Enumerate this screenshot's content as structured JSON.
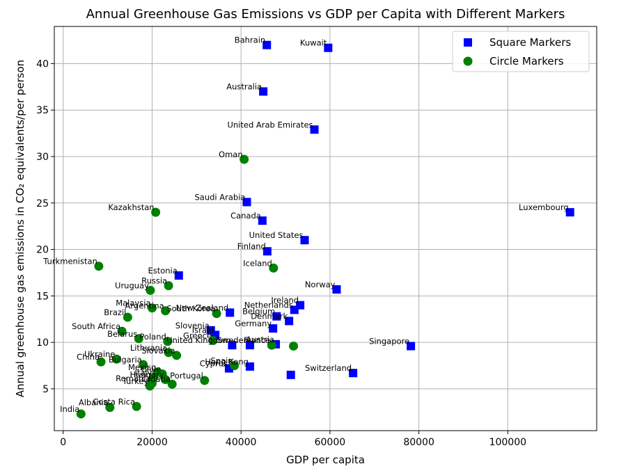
{
  "chart_data": {
    "type": "scatter",
    "title": "Annual Greenhouse Gas Emissions vs GDP per Capita with Different Markers",
    "xlabel": "GDP per capita",
    "ylabel": "Annual greenhouse gas emissions in CO₂ equivalents/per person",
    "xlim": [
      -2000,
      120000
    ],
    "ylim": [
      0.5,
      44
    ],
    "x_ticks": [
      0,
      20000,
      40000,
      60000,
      80000,
      100000
    ],
    "y_ticks": [
      5,
      10,
      15,
      20,
      25,
      30,
      35,
      40
    ],
    "grid": true,
    "legend_position": "top-right",
    "series": [
      {
        "name": "Square Markers",
        "marker": "square",
        "color": "#0000ff",
        "points": [
          {
            "label": "Bahrain",
            "x": 45800,
            "y": 42.0
          },
          {
            "label": "Kuwait",
            "x": 59600,
            "y": 41.7
          },
          {
            "label": "Australia",
            "x": 45000,
            "y": 37.0
          },
          {
            "label": "United Arab Emirates",
            "x": 56500,
            "y": 32.9
          },
          {
            "label": "Saudi Arabia",
            "x": 41300,
            "y": 25.1
          },
          {
            "label": "Luxembourg",
            "x": 114000,
            "y": 24.0
          },
          {
            "label": "Canada",
            "x": 44800,
            "y": 23.1
          },
          {
            "label": "United States",
            "x": 54300,
            "y": 21.0
          },
          {
            "label": "Finland",
            "x": 45900,
            "y": 19.8
          },
          {
            "label": "Estonia",
            "x": 26000,
            "y": 17.2
          },
          {
            "label": "Norway",
            "x": 61500,
            "y": 15.7
          },
          {
            "label": "Ireland",
            "x": 53300,
            "y": 14.0
          },
          {
            "label": "Netherlands",
            "x": 52000,
            "y": 13.5
          },
          {
            "label": "Belgium",
            "x": 48000,
            "y": 12.8
          },
          {
            "label": "New Zealand",
            "x": 37500,
            "y": 13.2
          },
          {
            "label": "Denmark",
            "x": 50800,
            "y": 12.3
          },
          {
            "label": "Germany",
            "x": 47200,
            "y": 11.5
          },
          {
            "label": "Slovenia",
            "x": 33200,
            "y": 11.3
          },
          {
            "label": "Israel",
            "x": 34200,
            "y": 10.8
          },
          {
            "label": "United Kingdom",
            "x": 38000,
            "y": 9.7
          },
          {
            "label": "Sweden",
            "x": 42000,
            "y": 9.7
          },
          {
            "label": "Austria",
            "x": 47800,
            "y": 9.8
          },
          {
            "label": "Singapore",
            "x": 78200,
            "y": 9.6
          },
          {
            "label": "Cyprus",
            "x": 37300,
            "y": 7.2
          },
          {
            "label": "Hong Kong",
            "x": 42000,
            "y": 7.4
          },
          {
            "label": "Switzerland",
            "x": 65200,
            "y": 6.7
          },
          {
            "label": "",
            "x": 51200,
            "y": 6.5
          }
        ]
      },
      {
        "name": "Circle Markers",
        "marker": "circle",
        "color": "#008000",
        "points": [
          {
            "label": "Oman",
            "x": 40700,
            "y": 29.7
          },
          {
            "label": "Kazakhstan",
            "x": 20800,
            "y": 24.0
          },
          {
            "label": "Turkmenistan",
            "x": 8000,
            "y": 18.2
          },
          {
            "label": "Iceland",
            "x": 47300,
            "y": 18.0
          },
          {
            "label": "Russia",
            "x": 23700,
            "y": 16.1
          },
          {
            "label": "Uruguay",
            "x": 19600,
            "y": 15.6
          },
          {
            "label": "Malaysia",
            "x": 20000,
            "y": 13.7
          },
          {
            "label": "Argentina",
            "x": 23000,
            "y": 13.4
          },
          {
            "label": "South Korea",
            "x": 34500,
            "y": 13.1
          },
          {
            "label": "Brazil",
            "x": 14500,
            "y": 12.7
          },
          {
            "label": "South Africa",
            "x": 13200,
            "y": 11.2
          },
          {
            "label": "Belarus",
            "x": 17000,
            "y": 10.4
          },
          {
            "label": "Poland",
            "x": 23500,
            "y": 10.1
          },
          {
            "label": "Greece",
            "x": 33700,
            "y": 10.2
          },
          {
            "label": "France",
            "x": 46900,
            "y": 9.7
          },
          {
            "label": "",
            "x": 51800,
            "y": 9.6
          },
          {
            "label": "Lithuania",
            "x": 23700,
            "y": 8.9
          },
          {
            "label": "Slovakia",
            "x": 25500,
            "y": 8.6
          },
          {
            "label": "Ukraine",
            "x": 12000,
            "y": 8.2
          },
          {
            "label": "China",
            "x": 8500,
            "y": 7.9
          },
          {
            "label": "Bulgaria",
            "x": 18000,
            "y": 7.6
          },
          {
            "label": "Spain",
            "x": 38500,
            "y": 7.5
          },
          {
            "label": "Mexico",
            "x": 21200,
            "y": 6.8
          },
          {
            "label": "Chile",
            "x": 22300,
            "y": 6.6
          },
          {
            "label": "Italy",
            "x": 20300,
            "y": 6.2
          },
          {
            "label": "Portugal",
            "x": 31800,
            "y": 5.9
          },
          {
            "label": "Hungary",
            "x": 23000,
            "y": 6.0
          },
          {
            "label": "Romania",
            "x": 20000,
            "y": 5.6
          },
          {
            "label": "Croatia",
            "x": 24500,
            "y": 5.5
          },
          {
            "label": "Turkey",
            "x": 19500,
            "y": 5.3
          },
          {
            "label": "Albania",
            "x": 10500,
            "y": 3.0
          },
          {
            "label": "Costa Rica",
            "x": 16500,
            "y": 3.1
          },
          {
            "label": "India",
            "x": 4000,
            "y": 2.3
          }
        ]
      }
    ]
  }
}
